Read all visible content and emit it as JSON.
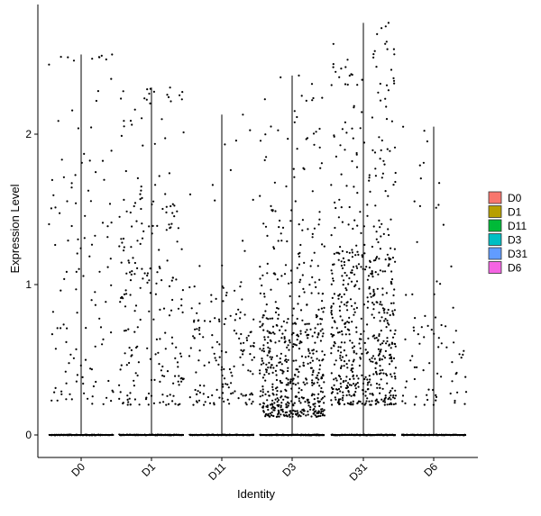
{
  "chart_data": {
    "type": "scatter",
    "subtype": "violin-jitter",
    "title": "",
    "xlabel": "Identity",
    "ylabel": "Expression Level",
    "categories": [
      "D0",
      "D1",
      "D11",
      "D3",
      "D31",
      "D6"
    ],
    "ylim": [
      -0.15,
      2.8
    ],
    "yticks": [
      0,
      1,
      2
    ],
    "grid": false,
    "legend": {
      "placement": "right",
      "entries": [
        {
          "label": "D0",
          "color": "#F8766D"
        },
        {
          "label": "D1",
          "color": "#B79F00"
        },
        {
          "label": "D11",
          "color": "#00BA38"
        },
        {
          "label": "D3",
          "color": "#00BFC4"
        },
        {
          "label": "D31",
          "color": "#619CFF"
        },
        {
          "label": "D6",
          "color": "#F564E3"
        }
      ]
    },
    "series": [
      {
        "name": "D0",
        "max": 2.53,
        "nonzero_points": 120,
        "baseline_points": 160,
        "values_min": 0.2,
        "values_bulk_high": 2.45,
        "median_nonzero": 1.2
      },
      {
        "name": "D1",
        "max": 2.31,
        "nonzero_points": 230,
        "baseline_points": 160,
        "values_min": 0.2,
        "values_bulk_high": 2.2,
        "median_nonzero": 1.0
      },
      {
        "name": "D11",
        "max": 2.13,
        "nonzero_points": 160,
        "baseline_points": 160,
        "values_min": 0.2,
        "values_bulk_high": 1.0,
        "median_nonzero": 0.5
      },
      {
        "name": "D3",
        "max": 2.39,
        "nonzero_points": 580,
        "baseline_points": 160,
        "values_min": 0.12,
        "values_bulk_high": 1.5,
        "median_nonzero": 0.5
      },
      {
        "name": "D31",
        "max": 2.74,
        "nonzero_points": 620,
        "baseline_points": 160,
        "values_min": 0.2,
        "values_bulk_high": 2.0,
        "median_nonzero": 0.8
      },
      {
        "name": "D6",
        "max": 2.05,
        "nonzero_points": 80,
        "baseline_points": 160,
        "values_min": 0.2,
        "values_bulk_high": 1.6,
        "median_nonzero": 0.5
      }
    ]
  }
}
